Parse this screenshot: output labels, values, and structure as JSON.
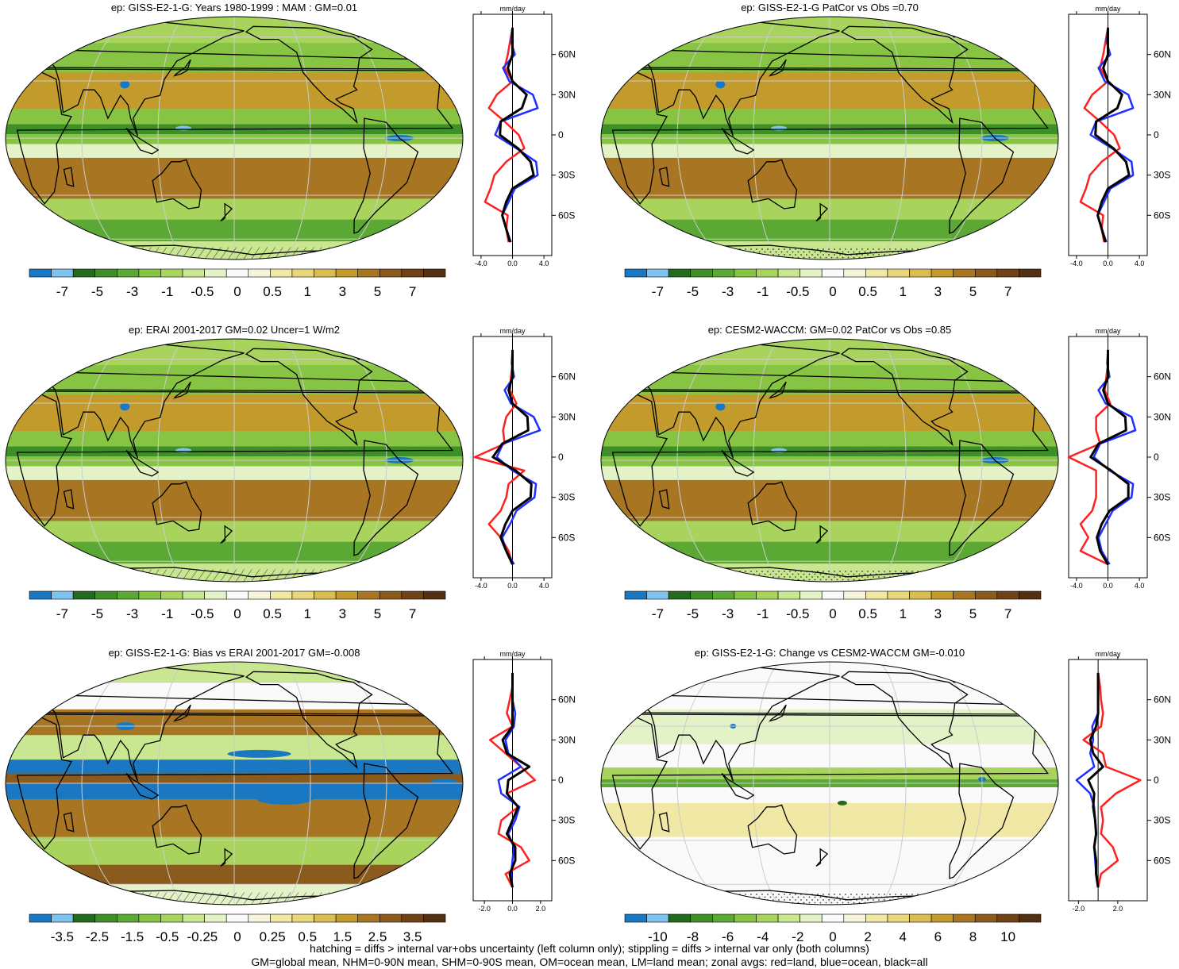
{
  "footnotes": [
    "hatching = diffs > internal var+obs uncertainty (left column only); stippling = diffs > internal var only (both columns)",
    "GM=global mean, NHM=0-90N mean, SHM=0-90S mean, OM=ocean mean, LM=land mean; zonal avgs: red=land, blue=ocean, black=all"
  ],
  "profile_unit": "mm/day",
  "lat_ticks": [
    "60N",
    "30N",
    "0",
    "30S",
    "60S"
  ],
  "lat_values": [
    60,
    30,
    0,
    -30,
    -60
  ],
  "colors": {
    "land": "#ff2020",
    "ocean": "#1f2fff",
    "all": "#000000",
    "coast": "#000000",
    "grid": "#cccccc"
  },
  "palette": [
    "#1a78c2",
    "#7ec3ee",
    "#246b1f",
    "#3e8f28",
    "#5ca834",
    "#88c444",
    "#a8d45e",
    "#c9e690",
    "#e4f2c8",
    "#fafafa",
    "#f7f4dc",
    "#f1e8a6",
    "#e9d77c",
    "#d9bd50",
    "#c39a2c",
    "#a87523",
    "#8b5a1d",
    "#6f4317",
    "#533011"
  ],
  "panels": [
    {
      "id": "p1",
      "title": "ep: GISS-E2-1-G: Years 1980-1999 : MAM : GM=0.01",
      "pattern": "hatch",
      "cbar_labels": [
        "-7",
        "-5",
        "-3",
        "-1",
        "-0.5",
        "0",
        "0.5",
        "1",
        "3",
        "5",
        "7"
      ],
      "profile_ticks": [
        "-4.0",
        "0.0",
        "4.0"
      ],
      "profile_range": [
        -5,
        5
      ],
      "lat_profile": [
        -80,
        -70,
        -60,
        -50,
        -40,
        -30,
        -20,
        -10,
        0,
        10,
        20,
        30,
        40,
        50,
        60,
        70,
        80
      ],
      "land": [
        -0.5,
        -0.8,
        -0.6,
        -3.5,
        -2.8,
        -2.3,
        -0.8,
        1.5,
        0.8,
        -1.0,
        -3.0,
        -2.0,
        0.0,
        -1.0,
        -0.6,
        -0.3,
        0.0
      ],
      "ocean": [
        -0.2,
        -0.8,
        -1.3,
        -0.5,
        0.3,
        3.2,
        3.0,
        0.5,
        -2.2,
        -1.5,
        3.2,
        2.6,
        -0.4,
        -1.2,
        0.3,
        -0.2,
        0.0
      ],
      "all": [
        -0.3,
        -0.8,
        -1.3,
        -0.8,
        0.0,
        2.7,
        2.3,
        0.7,
        -1.6,
        -1.5,
        1.2,
        1.8,
        0.0,
        -0.6,
        0.0,
        0.0,
        0.0
      ]
    },
    {
      "id": "p2",
      "title": "ep: GISS-E2-1-G PatCor vs Obs =0.70",
      "pattern": "stipple",
      "cbar_labels": [
        "-7",
        "-5",
        "-3",
        "-1",
        "-0.5",
        "0",
        "0.5",
        "1",
        "3",
        "5",
        "7"
      ],
      "profile_ticks": [
        "-4.0",
        "0.0",
        "4.0"
      ],
      "profile_range": [
        -5,
        5
      ],
      "lat_profile": [
        -80,
        -70,
        -60,
        -50,
        -40,
        -30,
        -20,
        -10,
        0,
        10,
        20,
        30,
        40,
        50,
        60,
        70,
        80
      ],
      "land": [
        -0.5,
        -0.8,
        -0.6,
        -3.5,
        -2.8,
        -2.3,
        -0.8,
        1.5,
        0.8,
        -1.0,
        -3.0,
        -2.0,
        0.0,
        -1.0,
        -0.6,
        -0.3,
        0.0
      ],
      "ocean": [
        -0.2,
        -0.8,
        -1.3,
        -0.5,
        0.3,
        3.2,
        3.0,
        0.5,
        -2.2,
        -1.5,
        3.2,
        2.6,
        -0.4,
        -1.2,
        0.3,
        -0.2,
        0.0
      ],
      "all": [
        -0.3,
        -0.8,
        -1.3,
        -0.8,
        0.0,
        2.7,
        2.3,
        0.7,
        -1.6,
        -1.5,
        1.2,
        1.8,
        0.0,
        -0.6,
        0.0,
        0.0,
        0.0
      ]
    },
    {
      "id": "p3",
      "title": "ep: ERAI 2001-2017 GM=0.02 Uncer=1 W/m2",
      "pattern": "hatch",
      "cbar_labels": [
        "-7",
        "-5",
        "-3",
        "-1",
        "-0.5",
        "0",
        "0.5",
        "1",
        "3",
        "5",
        "7"
      ],
      "profile_ticks": [
        "-4.0",
        "0.0",
        "4.0"
      ],
      "profile_range": [
        -5,
        5
      ],
      "lat_profile": [
        -80,
        -70,
        -60,
        -50,
        -40,
        -30,
        -20,
        -10,
        0,
        10,
        20,
        30,
        40,
        50,
        60,
        70,
        80
      ],
      "land": [
        0.0,
        -0.5,
        -1.5,
        -3.0,
        -1.5,
        -0.8,
        -0.5,
        1.5,
        -4.8,
        -1.0,
        -1.2,
        -0.8,
        0.5,
        -0.3,
        -0.2,
        0.0,
        0.0
      ],
      "ocean": [
        0.2,
        -0.8,
        -1.3,
        -0.3,
        0.5,
        2.8,
        3.0,
        0.0,
        -2.0,
        -1.2,
        3.5,
        2.7,
        -0.2,
        -1.0,
        0.2,
        -0.1,
        0.0
      ],
      "all": [
        0.0,
        -0.8,
        -1.5,
        -0.9,
        0.0,
        2.3,
        2.4,
        0.4,
        -2.5,
        -1.3,
        2.0,
        1.9,
        0.0,
        -0.5,
        0.0,
        0.0,
        0.0
      ]
    },
    {
      "id": "p4",
      "title": "ep: CESM2-WACCM: GM=0.02 PatCor vs Obs =0.85",
      "pattern": "stipple",
      "cbar_labels": [
        "-7",
        "-5",
        "-3",
        "-1",
        "-0.5",
        "0",
        "0.5",
        "1",
        "3",
        "5",
        "7"
      ],
      "profile_ticks": [
        "-4.0",
        "0.0",
        "4.0"
      ],
      "profile_range": [
        -5,
        5
      ],
      "lat_profile": [
        -80,
        -70,
        -60,
        -50,
        -40,
        -30,
        -20,
        -10,
        0,
        10,
        20,
        30,
        40,
        50,
        60,
        70,
        80
      ],
      "land": [
        0.0,
        -3.5,
        -2.5,
        -3.5,
        -2.0,
        -1.5,
        -1.5,
        -1.5,
        -5.0,
        -1.0,
        -1.5,
        -1.5,
        0.3,
        -0.4,
        -0.2,
        0.0,
        0.0
      ],
      "ocean": [
        0.2,
        -0.8,
        -1.2,
        -0.3,
        0.6,
        3.0,
        3.2,
        0.2,
        -1.8,
        -1.0,
        3.5,
        3.0,
        -0.3,
        -1.2,
        0.2,
        -0.1,
        0.0
      ],
      "all": [
        0.0,
        -1.0,
        -1.4,
        -0.8,
        0.2,
        2.6,
        2.6,
        0.4,
        -2.2,
        -1.2,
        2.3,
        2.2,
        0.0,
        -0.6,
        0.0,
        0.0,
        0.0
      ]
    },
    {
      "id": "p5",
      "title": "ep: GISS-E2-1-G: Bias vs ERAI 2001-2017 GM=-0.008",
      "pattern": "hatch",
      "cbar_labels": [
        "-3.5",
        "-2.5",
        "-1.5",
        "-0.5",
        "-0.25",
        "0",
        "0.25",
        "0.5",
        "1.5",
        "2.5",
        "3.5"
      ],
      "profile_ticks": [
        "-2.0",
        "0.0",
        "2.0"
      ],
      "profile_range": [
        -2.8,
        2.8
      ],
      "lat_profile": [
        -80,
        -70,
        -60,
        -50,
        -40,
        -30,
        -20,
        -10,
        0,
        10,
        20,
        30,
        40,
        50,
        60,
        70,
        80
      ],
      "land": [
        0.0,
        -0.5,
        1.2,
        0.6,
        -1.0,
        -0.8,
        0.4,
        -0.4,
        1.6,
        0.6,
        -0.5,
        -1.6,
        0.0,
        -0.4,
        -0.2,
        0.0,
        0.0
      ],
      "ocean": [
        0.0,
        -0.1,
        0.0,
        0.1,
        -0.3,
        0.2,
        0.5,
        -0.8,
        -1.0,
        0.6,
        -0.3,
        -0.5,
        0.1,
        0.2,
        0.0,
        0.0,
        0.0
      ],
      "all": [
        0.0,
        -0.2,
        0.2,
        0.2,
        -0.4,
        0.0,
        0.4,
        -0.4,
        -0.3,
        1.2,
        -0.4,
        -0.7,
        0.0,
        0.0,
        0.0,
        0.0,
        0.0
      ]
    },
    {
      "id": "p6",
      "title": "ep: GISS-E2-1-G: Change vs CESM2-WACCM GM=-0.010",
      "pattern": "stipple",
      "cbar_labels": [
        "-10",
        "-8",
        "-6",
        "-4",
        "-2",
        "0",
        "2",
        "4",
        "6",
        "8",
        "10"
      ],
      "profile_ticks": [
        "-2.0",
        "2.0"
      ],
      "profile_range": [
        -3,
        5
      ],
      "lat_profile": [
        -80,
        -70,
        -60,
        -50,
        -40,
        -30,
        -20,
        -10,
        0,
        10,
        20,
        30,
        40,
        50,
        60,
        70,
        80
      ],
      "land": [
        0.0,
        0.3,
        2.0,
        1.5,
        0.3,
        0.5,
        0.3,
        1.8,
        4.3,
        0.8,
        0.5,
        -1.5,
        0.3,
        0.5,
        0.3,
        0.2,
        0.0
      ],
      "ocean": [
        0.0,
        -0.2,
        -0.3,
        -0.4,
        -0.2,
        -0.3,
        -0.4,
        -0.8,
        -2.2,
        -0.4,
        -0.8,
        -0.5,
        -0.6,
        0.0,
        0.0,
        0.0,
        0.0
      ],
      "all": [
        0.0,
        -0.2,
        -0.2,
        -0.4,
        -0.2,
        -0.3,
        -0.5,
        -0.4,
        -1.0,
        0.5,
        -0.5,
        -0.8,
        -0.2,
        0.0,
        0.0,
        0.0,
        0.0
      ]
    }
  ]
}
